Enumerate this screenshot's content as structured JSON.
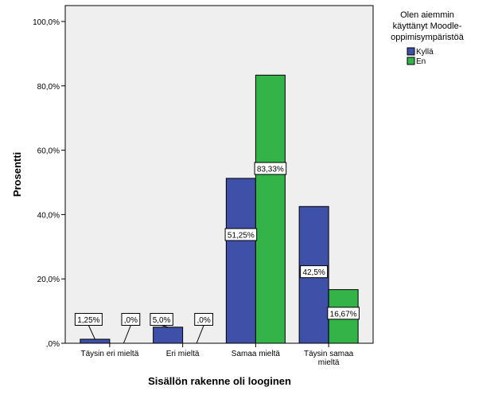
{
  "chart_data": {
    "type": "bar",
    "title": "",
    "xlabel": "Sisällön rakenne oli looginen",
    "ylabel": "Prosentti",
    "ylim": [
      0,
      100
    ],
    "yticks": [
      0,
      20,
      40,
      60,
      80,
      100
    ],
    "ytick_labels": [
      ",0%",
      "20,0%",
      "40,0%",
      "60,0%",
      "80,0%",
      "100,0%"
    ],
    "categories": [
      "Täysin eri mieltä",
      "Eri mieltä",
      "Samaa mieltä",
      "Täysin samaa mieltä"
    ],
    "category_display": [
      [
        "Täysin eri mieltä"
      ],
      [
        "Eri mieltä"
      ],
      [
        "Samaa mieltä"
      ],
      [
        "Täysin samaa",
        "mieltä"
      ]
    ],
    "legend": {
      "title_lines": [
        "Olen aiemmin",
        "käyttänyt Moodle-",
        "oppimisympäristöä"
      ],
      "position": "top-right"
    },
    "series": [
      {
        "name": "Kyllä",
        "color": "#3e50a8",
        "values": [
          1.25,
          5.0,
          51.25,
          42.5
        ],
        "labels": [
          "1,25%",
          "5,0%",
          "51,25%",
          "42,5%"
        ]
      },
      {
        "name": "En",
        "color": "#33b348",
        "values": [
          0,
          0,
          83.33,
          16.67
        ],
        "labels": [
          ",0%",
          ",0%",
          "83,33%",
          "16,67%"
        ]
      }
    ],
    "plot_background": "#efefef",
    "grid": false
  }
}
